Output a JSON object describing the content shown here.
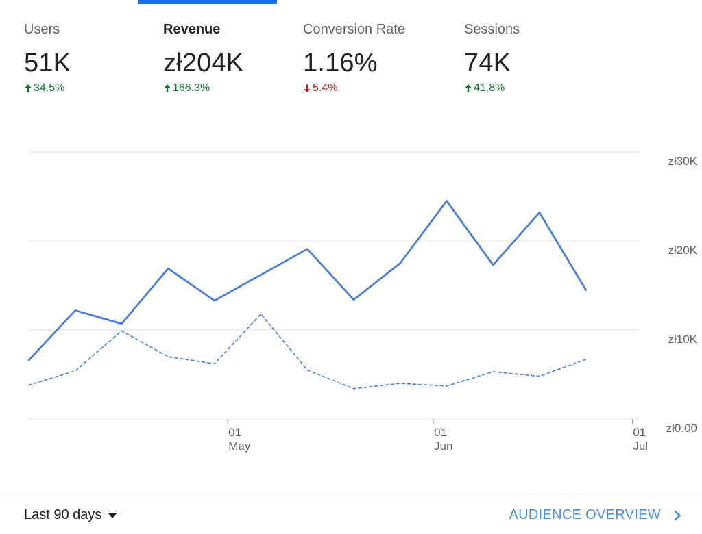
{
  "metrics": [
    {
      "label": "Users",
      "value": "51K",
      "change": "34.5%",
      "direction": "up",
      "selected": false
    },
    {
      "label": "Revenue",
      "value": "zł204K",
      "change": "166.3%",
      "direction": "up",
      "selected": true
    },
    {
      "label": "Conversion Rate",
      "value": "1.16%",
      "change": "5.4%",
      "direction": "down",
      "selected": false
    },
    {
      "label": "Sessions",
      "value": "74K",
      "change": "41.8%",
      "direction": "up",
      "selected": false
    }
  ],
  "colors": {
    "accent": "#1a73e8",
    "series_primary": "#4a7fd6",
    "series_comparison": "#4a7fd6",
    "up": "#137333",
    "down": "#c5221f",
    "gridline": "#e0e0e0"
  },
  "chart_data": {
    "type": "line",
    "x_unit": "days",
    "x_ticks": [
      {
        "day": 30,
        "top": "01",
        "bottom": "May"
      },
      {
        "day": 61,
        "top": "01",
        "bottom": "Jun"
      },
      {
        "day": 91,
        "top": "01",
        "bottom": "Jul"
      }
    ],
    "y_ticks": [
      {
        "value": 0,
        "label": "zł0.00"
      },
      {
        "value": 10000,
        "label": "zł10K"
      },
      {
        "value": 20000,
        "label": "zł20K"
      },
      {
        "value": 30000,
        "label": "zł30K"
      }
    ],
    "ylim": [
      0,
      30000
    ],
    "xlim": [
      0,
      92
    ],
    "grid": true,
    "series": [
      {
        "style": "solid",
        "points": [
          [
            0,
            6600
          ],
          [
            7,
            12200
          ],
          [
            14,
            10700
          ],
          [
            21,
            16900
          ],
          [
            28,
            13300
          ],
          [
            35,
            16200
          ],
          [
            42,
            19100
          ],
          [
            49,
            13400
          ],
          [
            56,
            17500
          ],
          [
            63,
            24500
          ],
          [
            70,
            17300
          ],
          [
            77,
            23200
          ],
          [
            84,
            14500
          ]
        ]
      },
      {
        "style": "dashed",
        "points": [
          [
            0,
            3800
          ],
          [
            7,
            5400
          ],
          [
            14,
            9900
          ],
          [
            21,
            7000
          ],
          [
            28,
            6200
          ],
          [
            35,
            11800
          ],
          [
            42,
            5500
          ],
          [
            49,
            3400
          ],
          [
            56,
            4000
          ],
          [
            63,
            3700
          ],
          [
            70,
            5300
          ],
          [
            77,
            4800
          ],
          [
            84,
            6700
          ]
        ]
      }
    ]
  },
  "footer": {
    "range_label": "Last 90 days",
    "link_label": "AUDIENCE OVERVIEW"
  }
}
